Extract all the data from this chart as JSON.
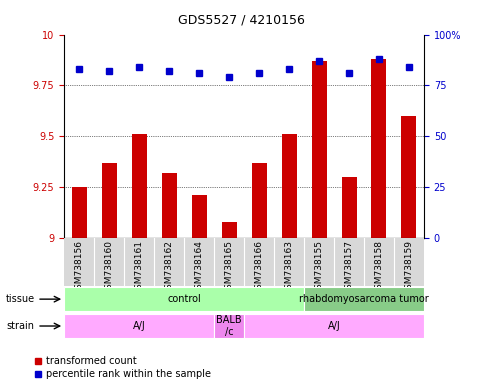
{
  "title": "GDS5527 / 4210156",
  "samples": [
    "GSM738156",
    "GSM738160",
    "GSM738161",
    "GSM738162",
    "GSM738164",
    "GSM738165",
    "GSM738166",
    "GSM738163",
    "GSM738155",
    "GSM738157",
    "GSM738158",
    "GSM738159"
  ],
  "bar_values": [
    9.25,
    9.37,
    9.51,
    9.32,
    9.21,
    9.08,
    9.37,
    9.51,
    9.87,
    9.3,
    9.88,
    9.6
  ],
  "dot_values": [
    83,
    82,
    84,
    82,
    81,
    79,
    81,
    83,
    87,
    81,
    88,
    84
  ],
  "ylim_left": [
    9.0,
    10.0
  ],
  "ylim_right": [
    0,
    100
  ],
  "yticks_left": [
    9.0,
    9.25,
    9.5,
    9.75,
    10.0
  ],
  "yticks_right": [
    0,
    25,
    50,
    75,
    100
  ],
  "bar_color": "#cc0000",
  "dot_color": "#0000cc",
  "tissue_labels": [
    {
      "text": "control",
      "start": 0,
      "end": 8,
      "color": "#aaffaa"
    },
    {
      "text": "rhabdomyosarcoma tumor",
      "start": 8,
      "end": 12,
      "color": "#88cc88"
    }
  ],
  "strain_labels": [
    {
      "text": "A/J",
      "start": 0,
      "end": 5,
      "color": "#ffaaff"
    },
    {
      "text": "BALB\n/c",
      "start": 5,
      "end": 6,
      "color": "#ee88ee"
    },
    {
      "text": "A/J",
      "start": 6,
      "end": 12,
      "color": "#ffaaff"
    }
  ],
  "row_label_tissue": "tissue",
  "row_label_strain": "strain",
  "legend_bar": "transformed count",
  "legend_dot": "percentile rank within the sample",
  "grid_yticks": [
    9.25,
    9.5,
    9.75
  ],
  "tick_label_fontsize": 7,
  "axis_fontsize": 7
}
